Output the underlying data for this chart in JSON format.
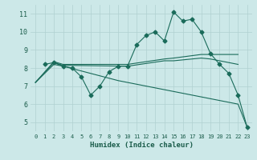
{
  "xlabel": "Humidex (Indice chaleur)",
  "bg_color": "#cce8e8",
  "grid_color": "#b0d0d0",
  "line_color": "#1a6b5a",
  "xlim": [
    -0.5,
    23.5
  ],
  "ylim": [
    4.5,
    11.5
  ],
  "xticks": [
    0,
    1,
    2,
    3,
    4,
    5,
    6,
    7,
    8,
    9,
    10,
    11,
    12,
    13,
    14,
    15,
    16,
    17,
    18,
    19,
    20,
    21,
    22,
    23
  ],
  "yticks": [
    5,
    6,
    7,
    8,
    9,
    10,
    11
  ],
  "series": [
    {
      "x": [
        1,
        2,
        3,
        4,
        5,
        6,
        7,
        8,
        9,
        10,
        11,
        12,
        13,
        14,
        15,
        16,
        17,
        18,
        19,
        20,
        21,
        22,
        23
      ],
      "y": [
        8.2,
        8.3,
        8.1,
        8.0,
        7.5,
        6.5,
        7.0,
        7.8,
        8.1,
        8.1,
        9.3,
        9.8,
        10.0,
        9.5,
        11.1,
        10.6,
        10.7,
        10.0,
        8.8,
        8.2,
        7.7,
        6.5,
        4.7
      ],
      "marker": "D",
      "markersize": 2.5
    },
    {
      "x": [
        0,
        2,
        3,
        10,
        14,
        15,
        18,
        19,
        22
      ],
      "y": [
        7.2,
        8.35,
        8.2,
        8.2,
        8.5,
        8.55,
        8.75,
        8.75,
        8.75
      ],
      "marker": null
    },
    {
      "x": [
        0,
        2,
        3,
        10,
        14,
        15,
        18,
        19,
        22
      ],
      "y": [
        7.2,
        8.3,
        8.15,
        8.1,
        8.4,
        8.4,
        8.55,
        8.5,
        8.2
      ],
      "marker": null
    },
    {
      "x": [
        0,
        2,
        3,
        9,
        12,
        14,
        15,
        19,
        22,
        23
      ],
      "y": [
        7.2,
        8.2,
        8.1,
        7.3,
        7.0,
        6.8,
        6.7,
        6.3,
        6.0,
        4.7
      ],
      "marker": null
    }
  ]
}
